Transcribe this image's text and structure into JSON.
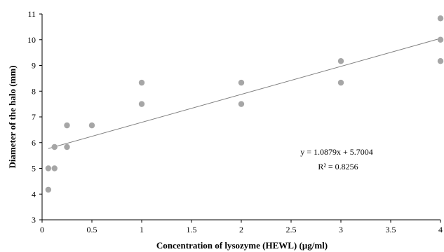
{
  "chart_data": {
    "type": "scatter",
    "xlabel": "Concentration of lysozyme (HEWL) (μg/ml)",
    "ylabel": "Diameter of the halo (mm)",
    "xlim": [
      0,
      4
    ],
    "ylim": [
      3,
      11
    ],
    "x_ticks": [
      "0",
      "0.5",
      "1",
      "1.5",
      "2",
      "2.5",
      "3",
      "3.5",
      "4"
    ],
    "y_ticks": [
      "3",
      "4",
      "5",
      "6",
      "7",
      "8",
      "9",
      "10",
      "11"
    ],
    "grid": false,
    "legend": "none",
    "marker_color": "#a6a6a6",
    "trend_color": "#808080",
    "points": [
      {
        "x": 0.0625,
        "y": 4.17
      },
      {
        "x": 0.0625,
        "y": 5.0
      },
      {
        "x": 0.125,
        "y": 5.0
      },
      {
        "x": 0.125,
        "y": 5.83
      },
      {
        "x": 0.25,
        "y": 5.83
      },
      {
        "x": 0.25,
        "y": 6.67
      },
      {
        "x": 0.5,
        "y": 6.67
      },
      {
        "x": 1.0,
        "y": 7.5
      },
      {
        "x": 1.0,
        "y": 8.33
      },
      {
        "x": 2.0,
        "y": 7.5
      },
      {
        "x": 2.0,
        "y": 8.33
      },
      {
        "x": 3.0,
        "y": 8.33
      },
      {
        "x": 3.0,
        "y": 9.17
      },
      {
        "x": 4.0,
        "y": 9.17
      },
      {
        "x": 4.0,
        "y": 10.0
      },
      {
        "x": 4.0,
        "y": 10.83
      }
    ],
    "trendline": {
      "slope": 1.0879,
      "intercept": 5.7004,
      "x_range": [
        0.0625,
        4.0
      ],
      "equation": "y = 1.0879x + 5.7004",
      "r_squared": "R² = 0.8256"
    }
  }
}
